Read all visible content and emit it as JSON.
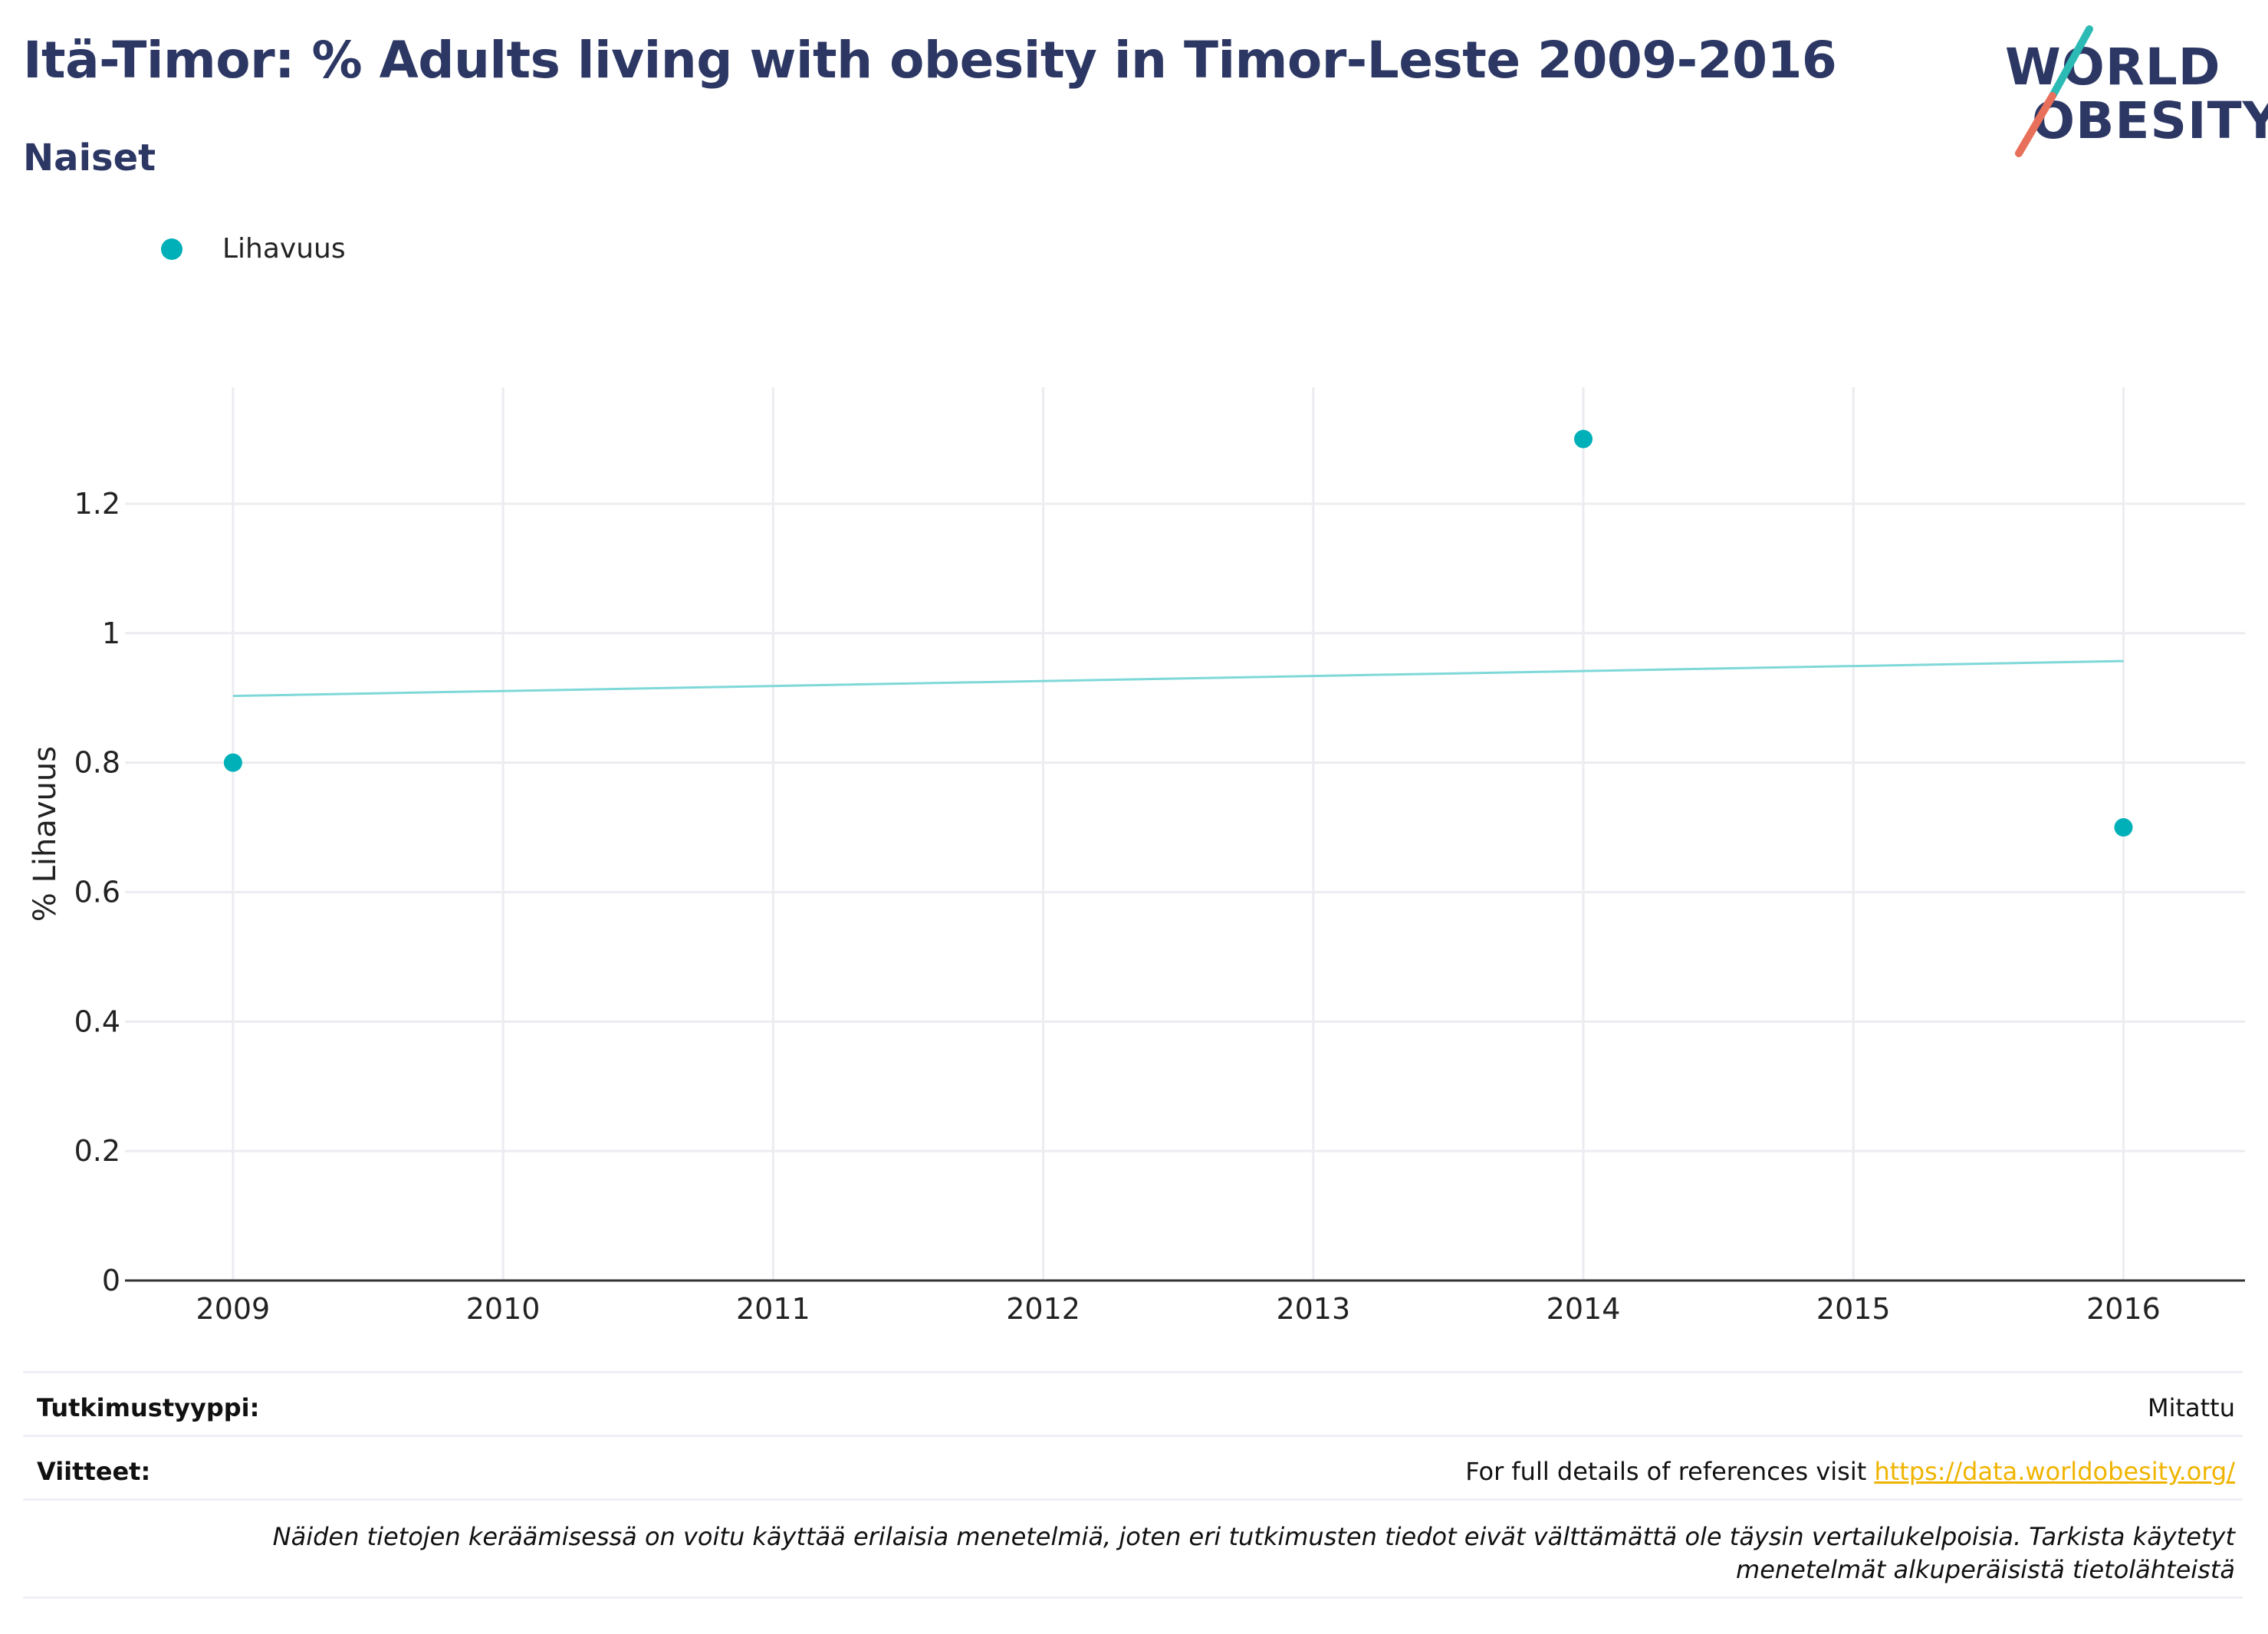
{
  "header": {
    "title": "Itä-Timor: % Adults living with obesity in Timor-Leste 2009-2016",
    "subtitle": "Naiset"
  },
  "logo": {
    "line1": "WORLD",
    "line2": "OBESITY",
    "accent_teal": "#2bbab4",
    "accent_coral": "#e8705a"
  },
  "legend": {
    "label": "Lihavuus",
    "color": "#00b0b9"
  },
  "chart_data": {
    "type": "scatter",
    "title": "Itä-Timor: % Adults living with obesity in Timor-Leste 2009-2016",
    "subtitle": "Naiset",
    "xlabel": "",
    "ylabel": "% Lihavuus",
    "x_ticks": [
      "2009",
      "2010",
      "2011",
      "2012",
      "2013",
      "2014",
      "2015",
      "2016"
    ],
    "y_ticks": [
      "0",
      "0.2",
      "0.4",
      "0.6",
      "0.8",
      "1",
      "1.2"
    ],
    "xlim": [
      2008.6,
      2016.45
    ],
    "ylim": [
      0,
      1.38
    ],
    "grid": true,
    "legend_position": "top-left",
    "series": [
      {
        "name": "Lihavuus",
        "color": "#00b0b9",
        "points": [
          {
            "x": 2009,
            "y": 0.8
          },
          {
            "x": 2014,
            "y": 1.3
          },
          {
            "x": 2016,
            "y": 0.7
          }
        ]
      }
    ],
    "trendline": {
      "color": "#7fd8d8",
      "points": [
        {
          "x": 2009,
          "y": 0.903
        },
        {
          "x": 2016,
          "y": 0.957
        }
      ]
    }
  },
  "footer": {
    "study_type_label": "Tutkimustyyppi:",
    "study_type_value": "Mitattu",
    "references_label": "Viitteet:",
    "references_text": "For full details of references visit ",
    "references_link": "https://data.worldobesity.org/",
    "note": "Näiden tietojen keräämisessä on voitu käyttää erilaisia menetelmiä, joten eri tutkimusten tiedot eivät välttämättä ole täysin vertailukelpoisia. Tarkista käytetyt menetelmät alkuperäisistä tietolähteistä"
  }
}
